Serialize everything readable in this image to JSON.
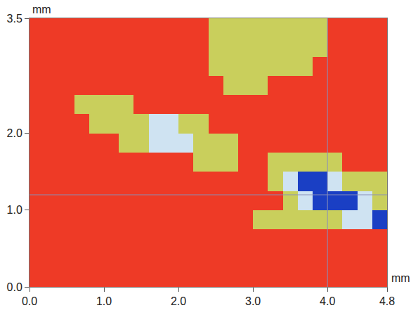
{
  "chart_data": {
    "type": "heatmap",
    "xlabel": "mm",
    "ylabel": "mm",
    "x": [
      0.1,
      0.3,
      0.5,
      0.7,
      0.9,
      1.1,
      1.3,
      1.5,
      1.7,
      1.9,
      2.1,
      2.3,
      2.5,
      2.7,
      2.9,
      3.1,
      3.3,
      3.5,
      3.7,
      3.9,
      4.1,
      4.3,
      4.5,
      4.7
    ],
    "y": [
      0.125,
      0.375,
      0.625,
      0.875,
      1.125,
      1.375,
      1.625,
      1.875,
      2.125,
      2.375,
      2.625,
      2.875,
      3.125,
      3.375
    ],
    "cells": [
      [
        3,
        3,
        3,
        3,
        3,
        3,
        3,
        3,
        3,
        3,
        3,
        3,
        3,
        3,
        3,
        3,
        3,
        3,
        3,
        3,
        3,
        3,
        3,
        3
      ],
      [
        3,
        3,
        3,
        3,
        3,
        3,
        3,
        3,
        3,
        3,
        3,
        3,
        3,
        3,
        3,
        3,
        3,
        3,
        3,
        3,
        3,
        3,
        3,
        3
      ],
      [
        3,
        3,
        3,
        3,
        3,
        3,
        3,
        3,
        3,
        3,
        3,
        3,
        3,
        3,
        3,
        3,
        3,
        3,
        3,
        3,
        3,
        3,
        3,
        3
      ],
      [
        3,
        3,
        3,
        3,
        3,
        3,
        3,
        3,
        3,
        3,
        3,
        3,
        3,
        3,
        3,
        2,
        2,
        2,
        2,
        2,
        2,
        1,
        1,
        0
      ],
      [
        3,
        3,
        3,
        3,
        3,
        3,
        3,
        3,
        3,
        3,
        3,
        3,
        3,
        3,
        3,
        3,
        3,
        2,
        1,
        0,
        0,
        0,
        1,
        2
      ],
      [
        3,
        3,
        3,
        3,
        3,
        3,
        3,
        3,
        3,
        3,
        3,
        3,
        3,
        3,
        3,
        3,
        2,
        1,
        0,
        0,
        1,
        2,
        2,
        2
      ],
      [
        3,
        3,
        3,
        3,
        3,
        3,
        3,
        3,
        3,
        3,
        3,
        2,
        2,
        2,
        3,
        3,
        2,
        2,
        2,
        2,
        2,
        3,
        3,
        3
      ],
      [
        3,
        3,
        3,
        3,
        3,
        3,
        2,
        2,
        1,
        1,
        1,
        2,
        2,
        2,
        3,
        3,
        3,
        3,
        3,
        3,
        3,
        3,
        3,
        3
      ],
      [
        3,
        3,
        3,
        3,
        2,
        2,
        2,
        2,
        1,
        1,
        2,
        2,
        3,
        3,
        3,
        3,
        3,
        3,
        3,
        3,
        3,
        3,
        3,
        3
      ],
      [
        3,
        3,
        3,
        2,
        2,
        2,
        2,
        3,
        3,
        3,
        3,
        3,
        3,
        3,
        3,
        3,
        3,
        3,
        3,
        3,
        3,
        3,
        3,
        3
      ],
      [
        3,
        3,
        3,
        3,
        3,
        3,
        3,
        3,
        3,
        3,
        3,
        3,
        3,
        2,
        2,
        2,
        3,
        3,
        3,
        3,
        3,
        3,
        3,
        3
      ],
      [
        3,
        3,
        3,
        3,
        3,
        3,
        3,
        3,
        3,
        3,
        3,
        3,
        2,
        2,
        2,
        2,
        2,
        2,
        2,
        3,
        3,
        3,
        3,
        3
      ],
      [
        3,
        3,
        3,
        3,
        3,
        3,
        3,
        3,
        3,
        3,
        3,
        3,
        2,
        2,
        2,
        2,
        2,
        2,
        2,
        2,
        3,
        3,
        3,
        3
      ],
      [
        3,
        3,
        3,
        3,
        3,
        3,
        3,
        3,
        3,
        3,
        3,
        3,
        2,
        2,
        2,
        2,
        2,
        2,
        2,
        2,
        3,
        3,
        3,
        3
      ]
    ],
    "zlim": [
      0,
      3
    ],
    "colors": [
      "#1a3fc4",
      "#cfe3f2",
      "#c9cf5c",
      "#ee3a26"
    ],
    "xlim": [
      0,
      4.8
    ],
    "ylim": [
      0,
      3.5
    ],
    "xticks": [
      {
        "value": 0,
        "label": "0.0"
      },
      {
        "value": 1,
        "label": "1.0"
      },
      {
        "value": 2,
        "label": "2.0"
      },
      {
        "value": 3,
        "label": "3.0"
      },
      {
        "value": 4,
        "label": "4.0"
      },
      {
        "value": 4.8,
        "label": "4.8"
      }
    ],
    "yticks": [
      {
        "value": 0,
        "label": "0.0"
      },
      {
        "value": 1,
        "label": "1.0"
      },
      {
        "value": 2,
        "label": "2.0"
      },
      {
        "value": 3.5,
        "label": "3.5"
      }
    ],
    "cursor_x": 4.0,
    "cursor_y": 1.2,
    "grid": false
  }
}
